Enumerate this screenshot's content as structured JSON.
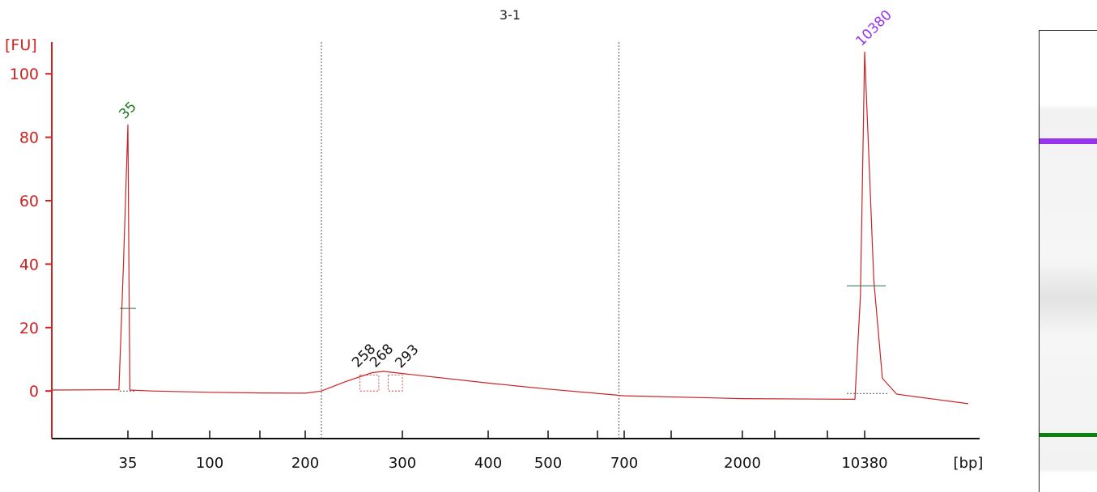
{
  "chart_data": {
    "type": "line",
    "title": "3-1",
    "ylabel": "[FU]",
    "xlabel": "[bp]",
    "ylim": [
      -15,
      110
    ],
    "y_ticks": [
      0,
      20,
      40,
      60,
      80,
      100
    ],
    "x_tick_labels": [
      "35",
      "100",
      "200",
      "300",
      "400",
      "500",
      "700",
      "2000",
      "10380"
    ],
    "markers": [
      {
        "label": "35",
        "x": "35",
        "y": 84,
        "color": "#1a7a1a"
      },
      {
        "label": "10380",
        "x": "10380",
        "y": 107,
        "color": "#9933ee"
      }
    ],
    "peak_labels": [
      "258",
      "268",
      "293"
    ],
    "smear_region": {
      "from": "~214",
      "to": "~680"
    },
    "series": [
      {
        "color": "#cc2222",
        "points": [
          [
            "~18",
            0.3
          ],
          [
            "33",
            0.4
          ],
          [
            "34",
            40
          ],
          [
            "35",
            84
          ],
          [
            "36",
            40
          ],
          [
            "37",
            0.3
          ],
          [
            "60",
            0
          ],
          [
            "100",
            -0.4
          ],
          [
            "160",
            -0.6
          ],
          [
            "200",
            -0.7
          ],
          [
            "214",
            0
          ],
          [
            "240",
            3
          ],
          [
            "268",
            5.8
          ],
          [
            "280",
            6.2
          ],
          [
            "300",
            5.5
          ],
          [
            "400",
            2.5
          ],
          [
            "500",
            0.6
          ],
          [
            "700",
            -1.5
          ],
          [
            "2000",
            -2.4
          ],
          [
            "9500",
            -2.6
          ],
          [
            "10000",
            30
          ],
          [
            "10380",
            107
          ],
          [
            "10700",
            35
          ],
          [
            "11000",
            4
          ],
          [
            "11500",
            -1
          ],
          [
            "~14000",
            -4
          ]
        ]
      }
    ]
  },
  "gel": {
    "upper_marker_color": "#9933ee",
    "lower_marker_color": "#0f800f"
  }
}
